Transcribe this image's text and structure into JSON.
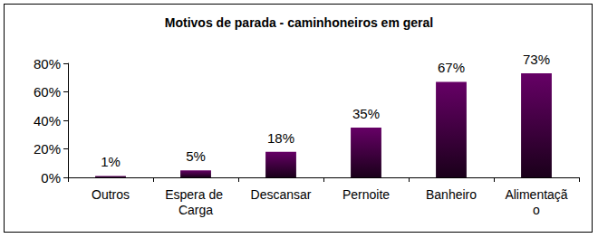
{
  "chart_data": {
    "type": "bar",
    "title": "Motivos de parada - caminhoneiros em geral",
    "categories": [
      "Outros",
      "Espera de Carga",
      "Descansar",
      "Pernoite",
      "Banheiro",
      "Alimentação"
    ],
    "values": [
      1,
      5,
      18,
      35,
      67,
      73
    ],
    "value_labels": [
      "1%",
      "5%",
      "18%",
      "35%",
      "67%",
      "73%"
    ],
    "color": "#660066",
    "ylim": [
      0,
      80
    ],
    "yticks": [
      {
        "value": 0,
        "label": "0%"
      },
      {
        "value": 20,
        "label": "20%"
      },
      {
        "value": 40,
        "label": "40%"
      },
      {
        "value": 60,
        "label": "60%"
      },
      {
        "value": 80,
        "label": "80%"
      }
    ],
    "grid": false,
    "data_labels": true
  }
}
